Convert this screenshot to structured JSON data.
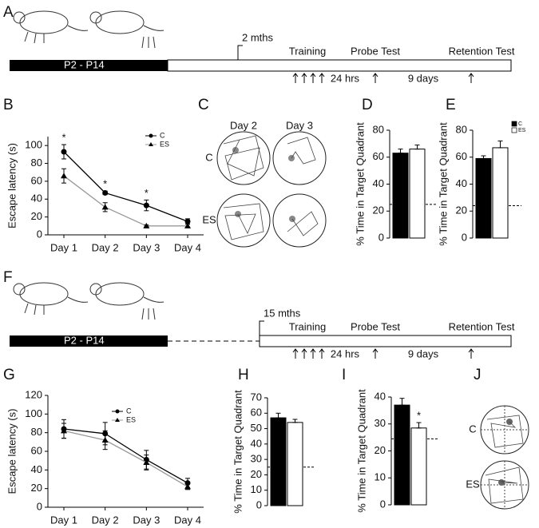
{
  "panel_labels": [
    "A",
    "B",
    "C",
    "D",
    "E",
    "F",
    "G",
    "H",
    "I",
    "J"
  ],
  "timelines": [
    {
      "age": "2 mths",
      "period": "P2 - P14",
      "training": "Training",
      "probe": "Probe Test",
      "retention": "Retention Test",
      "interval1": "24 hrs",
      "interval2": "9 days"
    },
    {
      "age": "15 mths",
      "period": "P2 - P14",
      "training": "Training",
      "probe": "Probe Test",
      "retention": "Retention Test",
      "interval1": "24 hrs",
      "interval2": "9 days"
    }
  ],
  "swim_paths": {
    "days": [
      "Day 2",
      "Day 3"
    ],
    "groups": [
      "C",
      "ES"
    ]
  },
  "swim_paths_late": {
    "groups": [
      "C",
      "ES"
    ]
  },
  "chart_data": [
    {
      "type": "line",
      "y_label": "Escape latency (s)",
      "categories": [
        "Day 1",
        "Day 2",
        "Day 3",
        "Day 4"
      ],
      "series": [
        {
          "name": "C",
          "color": "#000000",
          "values": [
            93,
            47,
            33,
            15
          ],
          "errors": [
            8,
            2,
            6,
            3
          ]
        },
        {
          "name": "ES",
          "color": "#999999",
          "values": [
            66,
            31,
            10,
            10
          ],
          "errors": [
            8,
            5,
            1,
            2
          ]
        }
      ],
      "significance": [
        "*",
        "*",
        "*",
        null
      ],
      "ylim": [
        0,
        110
      ],
      "yticks": [
        0,
        20,
        40,
        60,
        80,
        100
      ]
    },
    {
      "type": "bar",
      "y_label": "% Time in Target Quadrant",
      "values": [
        63,
        66
      ],
      "errors": [
        3,
        3
      ],
      "colors": [
        "#000000",
        "#ffffff"
      ],
      "chance_line": 25,
      "ylim": [
        0,
        80
      ],
      "yticks": [
        0,
        20,
        40,
        60,
        80
      ]
    },
    {
      "type": "bar",
      "y_label": "% Time in Target Quadrant",
      "series": [
        {
          "name": "C",
          "color": "#000000",
          "values": [
            59
          ],
          "errors": [
            2
          ]
        },
        {
          "name": "ES",
          "color": "#ffffff",
          "values": [
            67
          ],
          "errors": [
            5
          ]
        }
      ],
      "chance_line": 24,
      "ylim": [
        0,
        80
      ],
      "yticks": [
        0,
        20,
        40,
        60,
        80
      ],
      "legend": "top-right"
    },
    {
      "type": "line",
      "y_label": "Escape latency (s)",
      "categories": [
        "Day 1",
        "Day 2",
        "Day 3",
        "Day 4"
      ],
      "series": [
        {
          "name": "C",
          "color": "#000000",
          "values": [
            84,
            79,
            51,
            26
          ],
          "errors": [
            10,
            12,
            10,
            5
          ]
        },
        {
          "name": "ES",
          "color": "#999999",
          "values": [
            82,
            72,
            48,
            22
          ],
          "errors": [
            8,
            10,
            8,
            3
          ]
        }
      ],
      "ylim": [
        0,
        120
      ],
      "yticks": [
        0,
        20,
        40,
        60,
        80,
        100,
        120
      ]
    },
    {
      "type": "bar",
      "y_label": "% Time in Target Quadrant",
      "values": [
        57,
        54
      ],
      "errors": [
        3,
        2
      ],
      "colors": [
        "#000000",
        "#ffffff"
      ],
      "chance_line": 25,
      "ylim": [
        0,
        70
      ],
      "yticks": [
        0,
        10,
        20,
        30,
        40,
        50,
        60,
        70
      ]
    },
    {
      "type": "bar",
      "y_label": "% Time in Target Quadrant",
      "values": [
        37,
        28.5
      ],
      "errors": [
        2.5,
        2
      ],
      "colors": [
        "#000000",
        "#ffffff"
      ],
      "significance": [
        null,
        "*"
      ],
      "chance_line": 24.5,
      "ylim": [
        0,
        40
      ],
      "yticks": [
        0,
        10,
        20,
        30,
        40
      ]
    }
  ]
}
